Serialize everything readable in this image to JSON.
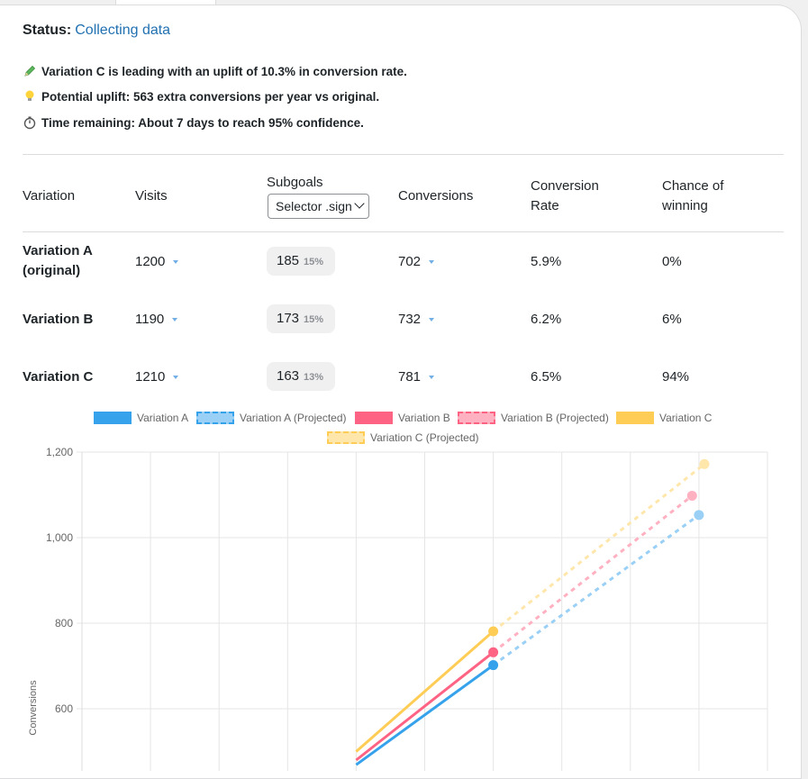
{
  "status": {
    "label": "Status:",
    "value": "Collecting data"
  },
  "insights": [
    {
      "icon": "pencil-icon",
      "text": "Variation C is leading with an uplift of 10.3% in conversion rate."
    },
    {
      "icon": "lightbulb-icon",
      "text": "Potential uplift: 563 extra conversions per year vs original."
    },
    {
      "icon": "stopwatch-icon",
      "text": "Time remaining: About 7 days to reach 95% confidence."
    }
  ],
  "table": {
    "headers": {
      "variation": "Variation",
      "visits": "Visits",
      "subgoals": "Subgoals",
      "conversions": "Conversions",
      "conversion_rate_1": "Conversion",
      "conversion_rate_2": "Rate",
      "chance_1": "Chance of",
      "chance_2": "winning"
    },
    "subgoal_select": {
      "selected": "Selector .signup"
    },
    "rows": [
      {
        "name_1": "Variation A",
        "name_2": "(original)",
        "visits": "1200",
        "subgoal": "185",
        "subgoal_pct": "15%",
        "conversions": "702",
        "rate": "5.9%",
        "chance": "0%"
      },
      {
        "name_1": "Variation B",
        "name_2": "",
        "visits": "1190",
        "subgoal": "173",
        "subgoal_pct": "15%",
        "conversions": "732",
        "rate": "6.2%",
        "chance": "6%"
      },
      {
        "name_1": "Variation C",
        "name_2": "",
        "visits": "1210",
        "subgoal": "163",
        "subgoal_pct": "13%",
        "conversions": "781",
        "rate": "6.5%",
        "chance": "94%"
      }
    ]
  },
  "colors": {
    "a": "#36a2eb",
    "a_proj": "#9ad0f5",
    "b": "#ff6384",
    "b_proj": "#ffb1c1",
    "c": "#ffcd56",
    "c_proj": "#ffe6aa"
  },
  "chart_data": {
    "type": "line",
    "legend_position": "top",
    "ylabel": "Conversions",
    "yticks": [
      "600",
      "800",
      "1,000",
      "1,200"
    ],
    "ylim": [
      480,
      1200
    ],
    "x_slots": 10,
    "series": [
      {
        "name": "Variation A",
        "points": [
          [
            4,
            469
          ],
          [
            6,
            702
          ]
        ],
        "projected": false,
        "color_key": "a"
      },
      {
        "name": "Variation A (Projected)",
        "points": [
          [
            6,
            702
          ],
          [
            9,
            1053
          ]
        ],
        "projected": true,
        "color_key": "a_proj"
      },
      {
        "name": "Variation B",
        "points": [
          [
            4,
            480
          ],
          [
            6,
            732
          ]
        ],
        "projected": false,
        "color_key": "b"
      },
      {
        "name": "Variation B (Projected)",
        "points": [
          [
            6,
            732
          ],
          [
            8.9,
            1098
          ]
        ],
        "projected": true,
        "color_key": "b_proj"
      },
      {
        "name": "Variation C",
        "points": [
          [
            4,
            500
          ],
          [
            6,
            781
          ]
        ],
        "projected": false,
        "color_key": "c"
      },
      {
        "name": "Variation C (Projected)",
        "points": [
          [
            6,
            781
          ],
          [
            9.08,
            1172
          ]
        ],
        "projected": true,
        "color_key": "c_proj"
      }
    ]
  }
}
